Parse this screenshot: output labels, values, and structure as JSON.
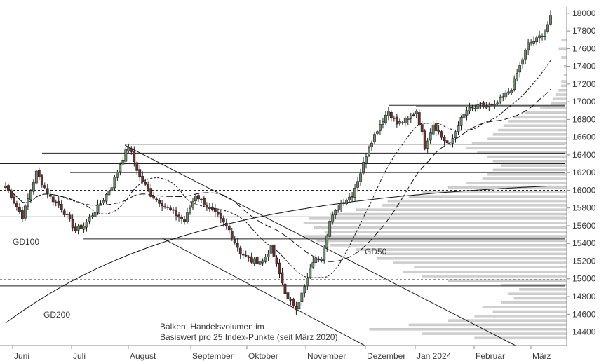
{
  "chart_data": {
    "type": "candlestick",
    "y_axis": {
      "min": 14230,
      "max": 18070,
      "ticks": [
        14400,
        14600,
        14800,
        15000,
        15200,
        15400,
        15600,
        15800,
        16000,
        16200,
        16400,
        16600,
        16800,
        17000,
        17200,
        17400,
        17600,
        17800,
        18000
      ]
    },
    "x_months": [
      "Juni",
      "Juli",
      "August",
      "September",
      "Oktober",
      "November",
      "Dezember",
      "Jan 2024",
      "Februar",
      "März"
    ],
    "anchors": [
      {
        "i": 0,
        "v": 16050
      },
      {
        "i": 6,
        "v": 15700
      },
      {
        "i": 11,
        "v": 16200
      },
      {
        "i": 16,
        "v": 15920
      },
      {
        "i": 20,
        "v": 15800
      },
      {
        "i": 25,
        "v": 15550
      },
      {
        "i": 28,
        "v": 15600
      },
      {
        "i": 34,
        "v": 15850
      },
      {
        "i": 38,
        "v": 16050
      },
      {
        "i": 41,
        "v": 16300
      },
      {
        "i": 44,
        "v": 16500
      },
      {
        "i": 48,
        "v": 16150
      },
      {
        "i": 52,
        "v": 15950
      },
      {
        "i": 56,
        "v": 15850
      },
      {
        "i": 60,
        "v": 15750
      },
      {
        "i": 64,
        "v": 15650
      },
      {
        "i": 68,
        "v": 15950
      },
      {
        "i": 72,
        "v": 15820
      },
      {
        "i": 76,
        "v": 15700
      },
      {
        "i": 80,
        "v": 15550
      },
      {
        "i": 84,
        "v": 15300
      },
      {
        "i": 88,
        "v": 15200
      },
      {
        "i": 92,
        "v": 15200
      },
      {
        "i": 95,
        "v": 15350
      },
      {
        "i": 98,
        "v": 15050
      },
      {
        "i": 101,
        "v": 14760
      },
      {
        "i": 104,
        "v": 14680
      },
      {
        "i": 107,
        "v": 14900
      },
      {
        "i": 110,
        "v": 15200
      },
      {
        "i": 113,
        "v": 15250
      },
      {
        "i": 116,
        "v": 15650
      },
      {
        "i": 120,
        "v": 15850
      },
      {
        "i": 124,
        "v": 15950
      },
      {
        "i": 127,
        "v": 16200
      },
      {
        "i": 130,
        "v": 16500
      },
      {
        "i": 134,
        "v": 16750
      },
      {
        "i": 137,
        "v": 16900
      },
      {
        "i": 140,
        "v": 16750
      },
      {
        "i": 144,
        "v": 16800
      },
      {
        "i": 147,
        "v": 16900
      },
      {
        "i": 150,
        "v": 16500
      },
      {
        "i": 153,
        "v": 16750
      },
      {
        "i": 156,
        "v": 16600
      },
      {
        "i": 159,
        "v": 16500
      },
      {
        "i": 162,
        "v": 16750
      },
      {
        "i": 165,
        "v": 16900
      },
      {
        "i": 170,
        "v": 16950
      },
      {
        "i": 175,
        "v": 16950
      },
      {
        "i": 178,
        "v": 17050
      },
      {
        "i": 181,
        "v": 17150
      },
      {
        "i": 184,
        "v": 17400
      },
      {
        "i": 187,
        "v": 17650
      },
      {
        "i": 190,
        "v": 17700
      },
      {
        "i": 193,
        "v": 17800
      },
      {
        "i": 195,
        "v": 17950
      }
    ],
    "n_candles": 196,
    "horizontal_lines": [
      {
        "v": 15730,
        "style": "solid"
      },
      {
        "v": 15700,
        "style": "solid"
      },
      {
        "v": 15450,
        "style": "solid"
      },
      {
        "v": 16000,
        "style": "dashed"
      },
      {
        "v": 16200,
        "style": "solid"
      },
      {
        "v": 16300,
        "style": "solid"
      },
      {
        "v": 16420,
        "style": "solid"
      },
      {
        "v": 16520,
        "style": "solid"
      },
      {
        "v": 16960,
        "style": "solid"
      },
      {
        "v": 14990,
        "style": "dashed"
      },
      {
        "v": 14920,
        "style": "solid"
      }
    ],
    "ma_labels": [
      "GD100",
      "GD200",
      "GD50"
    ],
    "annotation": [
      "Balken: Handelsvolumen im",
      "Basiswert pro 25 Index-Punkte (seit März 2020)"
    ],
    "colors": {
      "up": "#2f4f2f",
      "down": "#3a1d1d",
      "body_fill": "#7a7a7a",
      "volume": "#c7c7c7"
    }
  }
}
